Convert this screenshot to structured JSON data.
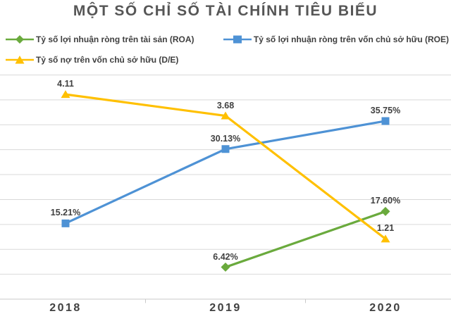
{
  "chart_data": {
    "type": "line",
    "title": "MỘT SỐ CHỈ SỐ TÀI CHÍNH TIÊU BIỂU",
    "categories": [
      "2018",
      "2019",
      "2020"
    ],
    "series": [
      {
        "name": "Tỷ số lợi nhuận ròng trên tài sản (ROA)",
        "color": "#6aaa3d",
        "marker": "diamond",
        "axis": "primary",
        "values": [
          null,
          6.42,
          17.6
        ],
        "labels": [
          "",
          "6.42%",
          "17.60%"
        ]
      },
      {
        "name": "Tỷ số lợi nhuận ròng trên vốn chủ sở hữu (ROE)",
        "color": "#4e92d5",
        "marker": "square",
        "axis": "primary",
        "values": [
          15.21,
          30.13,
          35.75
        ],
        "labels": [
          "15.21%",
          "30.13%",
          "35.75%"
        ]
      },
      {
        "name": "Tỷ số nợ trên vốn chủ sở hữu (D/E)",
        "color": "#ffc000",
        "marker": "triangle",
        "axis": "secondary",
        "values": [
          4.11,
          3.68,
          1.21
        ],
        "labels": [
          "4.11",
          "3.68",
          "1.21"
        ]
      }
    ],
    "primary_axis": {
      "min": 0,
      "max": 45,
      "step": 5,
      "labels_visible": false
    },
    "secondary_axis": {
      "min": 0,
      "max": 4.5,
      "step": 0.5,
      "labels_visible": false
    },
    "grid": true,
    "legend_position": "top"
  }
}
